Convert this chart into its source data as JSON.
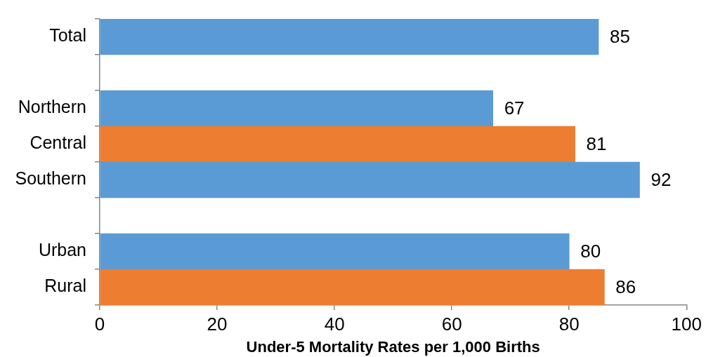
{
  "chart_data": {
    "type": "bar",
    "orientation": "horizontal",
    "categories": [
      "Total",
      null,
      "Northern",
      "Central",
      "Southern",
      null,
      "Urban",
      "Rural"
    ],
    "values": [
      85,
      null,
      67,
      81,
      92,
      null,
      80,
      86
    ],
    "colors": [
      "#5b9bd5",
      "#5b9bd5",
      "#5b9bd5",
      "#ed7d31",
      "#5b9bd5",
      "#5b9bd5",
      "#5b9bd5",
      "#ed7d31"
    ],
    "xlabel": "Under-5 Mortality Rates per 1,000 Births",
    "xlim": [
      0,
      100
    ],
    "xticks": [
      0,
      20,
      40,
      60,
      80,
      100
    ],
    "data_labels": true
  }
}
